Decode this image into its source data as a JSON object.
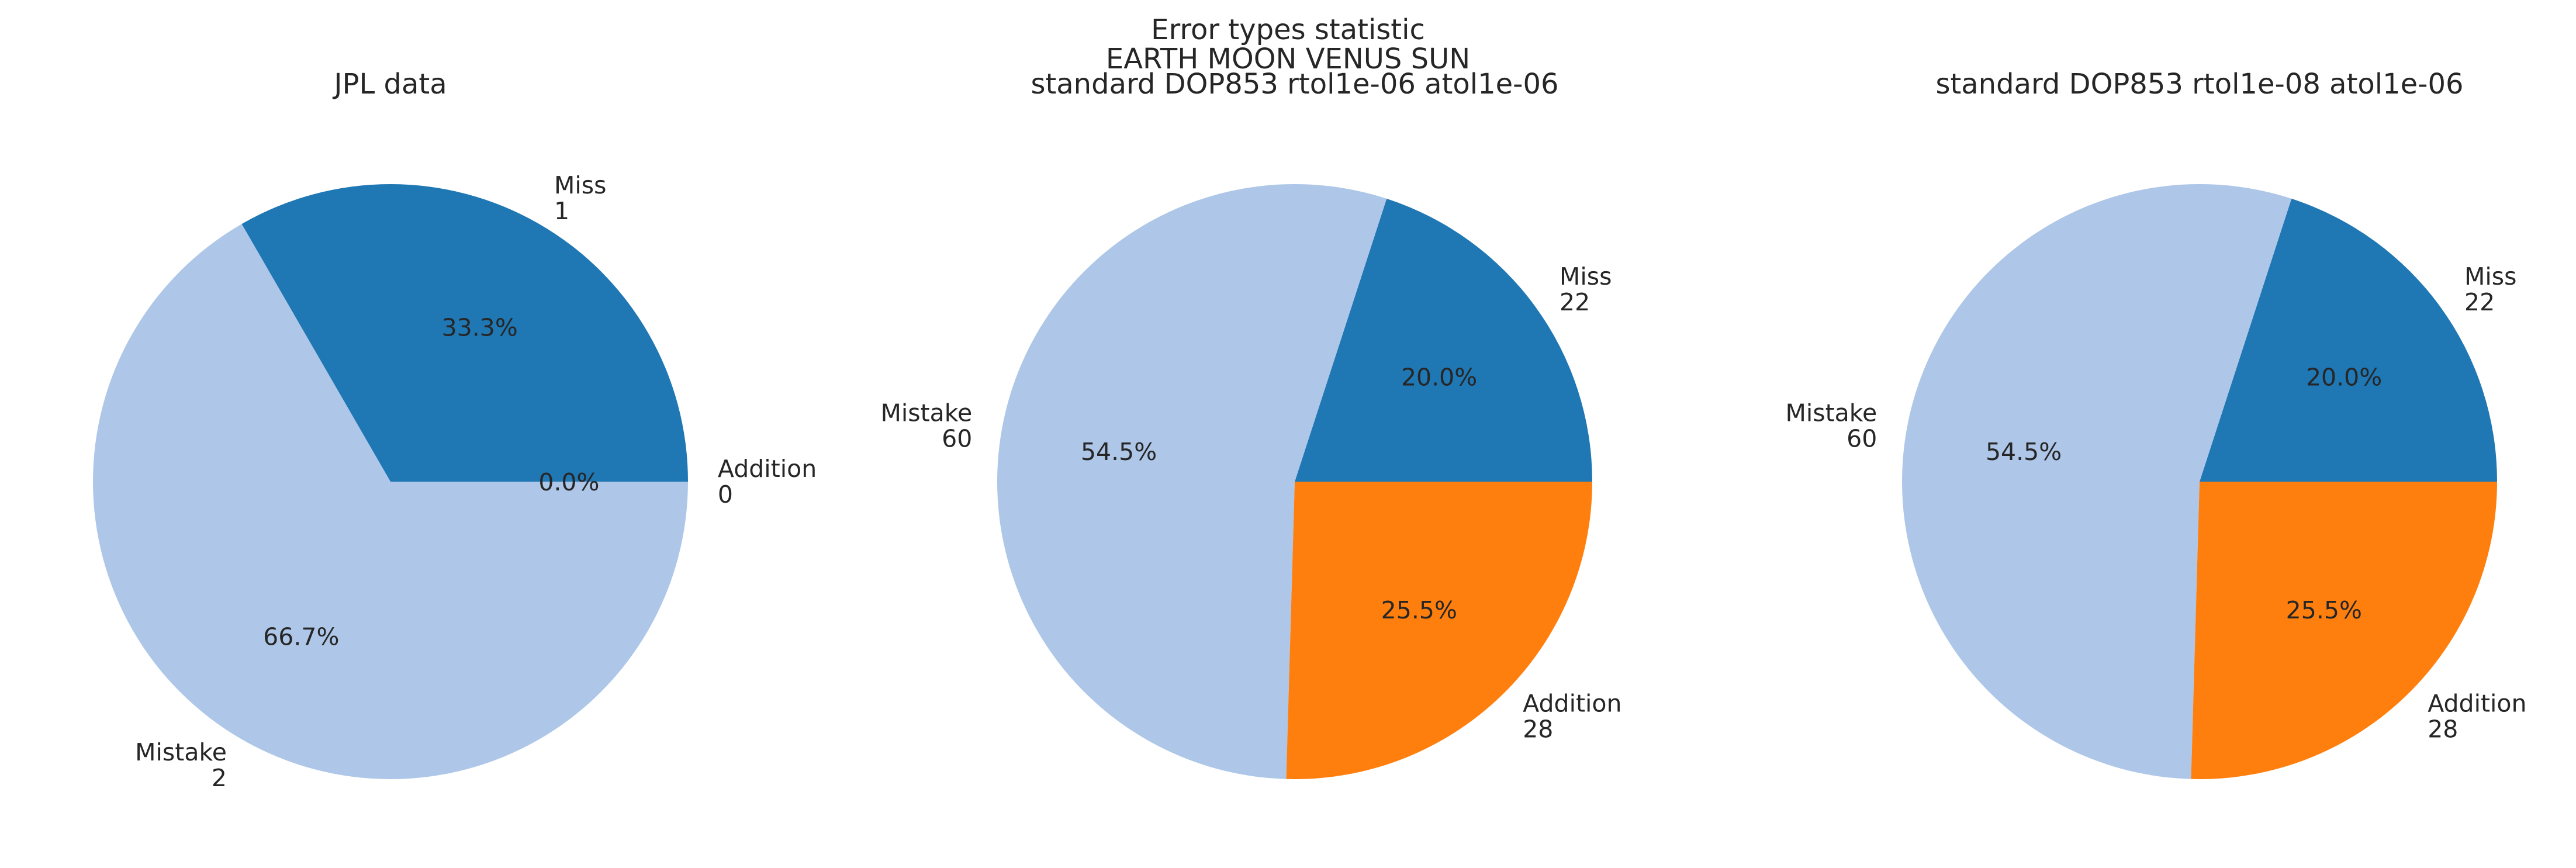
{
  "figure": {
    "suptitle_lines": [
      "Error types statistic",
      "EARTH MOON VENUS SUN"
    ]
  },
  "colors": {
    "Miss": "#1f77b4",
    "Mistake": "#aec7e8",
    "Addition": "#ff7f0e"
  },
  "chart_data": [
    {
      "type": "pie",
      "title": "JPL data",
      "start_angle_deg": 0,
      "direction": "counterclockwise",
      "slices": [
        {
          "label": "Miss",
          "count": "1",
          "value": 1,
          "pct": "33.3%"
        },
        {
          "label": "Mistake",
          "count": "2",
          "value": 2,
          "pct": "66.7%"
        },
        {
          "label": "Addition",
          "count": "0",
          "value": 0,
          "pct": "0.0%"
        }
      ]
    },
    {
      "type": "pie",
      "title": "standard DOP853 rtol1e-06 atol1e-06",
      "start_angle_deg": 0,
      "direction": "counterclockwise",
      "slices": [
        {
          "label": "Miss",
          "count": "22",
          "value": 22,
          "pct": "20.0%"
        },
        {
          "label": "Mistake",
          "count": "60",
          "value": 60,
          "pct": "54.5%"
        },
        {
          "label": "Addition",
          "count": "28",
          "value": 28,
          "pct": "25.5%"
        }
      ]
    },
    {
      "type": "pie",
      "title": "standard DOP853 rtol1e-08 atol1e-06",
      "start_angle_deg": 0,
      "direction": "counterclockwise",
      "slices": [
        {
          "label": "Miss",
          "count": "22",
          "value": 22,
          "pct": "20.0%"
        },
        {
          "label": "Mistake",
          "count": "60",
          "value": 60,
          "pct": "54.5%"
        },
        {
          "label": "Addition",
          "count": "28",
          "value": 28,
          "pct": "25.5%"
        }
      ]
    }
  ]
}
